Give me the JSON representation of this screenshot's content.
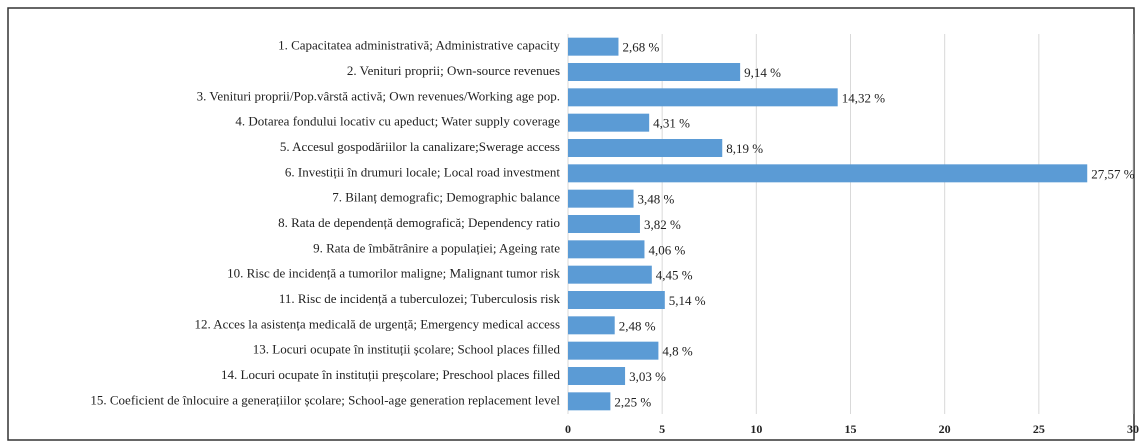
{
  "chart_data": {
    "type": "hbar",
    "categories": [
      "1. Capacitatea administrativă; Administrative capacity",
      "2. Venituri proprii; Own-source revenues",
      "3. Venituri proprii/Pop.vârstă activă; Own revenues/Working age pop.",
      "4. Dotarea fondului locativ cu apeduct; Water supply coverage",
      "5. Accesul gospodăriilor la canalizare;Swerage access",
      "6. Investiții în drumuri locale; Local road investment",
      "7. Bilanț demografic; Demographic balance",
      "8. Rata de dependență demografică; Dependency ratio",
      "9. Rata de îmbătrânire a populației; Ageing rate",
      "10. Risc de incidență a tumorilor maligne; Malignant tumor risk",
      "11. Risc de incidență a tuberculozei; Tuberculosis risk",
      "12. Acces la asistența medicală de urgență; Emergency medical access",
      "13. Locuri ocupate în instituții școlare; School places filled",
      "14. Locuri ocupate în instituții preșcolare; Preschool places filled",
      "15. Coeficient de înlocuire a generațiilor școlare; School-age generation replacement level"
    ],
    "values": [
      2.68,
      9.14,
      14.32,
      4.31,
      8.19,
      27.57,
      3.48,
      3.82,
      4.06,
      4.45,
      5.14,
      2.48,
      4.8,
      3.03,
      2.25
    ],
    "value_labels": [
      "2,68 %",
      "9,14 %",
      "14,32 %",
      "4,31 %",
      "8,19 %",
      "27,57 %",
      "3,48 %",
      "3,82 %",
      "4,06 %",
      "4,45 %",
      "5,14 %",
      "2,48 %",
      "4,8 %",
      "3,03 %",
      "2,25 %"
    ],
    "color": "#5b9bd5",
    "xlim": [
      0,
      30
    ],
    "xticks": [
      0,
      5,
      10,
      15,
      20,
      25,
      30
    ],
    "grid": true
  }
}
